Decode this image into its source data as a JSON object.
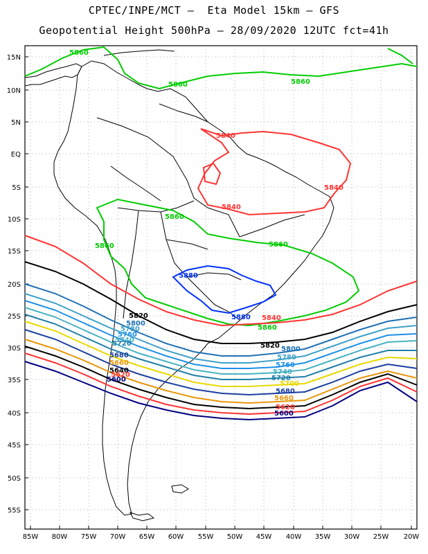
{
  "header": {
    "title_line1": "CPTEC/INPE/MCT –  Eta Model 15km – GFS",
    "title_line2": "Geopotential Height 500hPa – 28/09/2020 12UTC fct=41h"
  },
  "axes": {
    "lon_labels": [
      "85W",
      "80W",
      "75W",
      "70W",
      "65W",
      "60W",
      "55W",
      "50W",
      "45W",
      "40W",
      "35W",
      "30W",
      "25W",
      "20W"
    ],
    "lat_labels": [
      "15N",
      "10N",
      "5N",
      "EQ",
      "5S",
      "10S",
      "15S",
      "20S",
      "25S",
      "30S",
      "35S",
      "40S",
      "45S",
      "50S",
      "55S"
    ]
  },
  "colors": {
    "c5900": "#000080",
    "c5880": "#cc3333",
    "c5860": "#e8960a",
    "c5840": "#ff0000",
    "c5820": "#000000",
    "c5800": "#1f70b4",
    "c5780": "#3ea0c8",
    "c5760": "#1e90e8",
    "c5740": "#48b2c2",
    "c5720": "#1f7fa8",
    "c5700": "#e8d800",
    "c5680": "#1a3ea0",
    "green": "#00cc00",
    "blue": "#0033ff",
    "land": "#000000"
  },
  "contour_labels": [
    {
      "text": "5860",
      "color": "#00cc00"
    },
    {
      "text": "5860",
      "color": "#00cc00"
    },
    {
      "text": "5860",
      "color": "#00cc00"
    },
    {
      "text": "5860",
      "color": "#00cc00"
    },
    {
      "text": "5860",
      "color": "#00cc00"
    },
    {
      "text": "5860",
      "color": "#00cc00"
    },
    {
      "text": "5860",
      "color": "#00cc00"
    },
    {
      "text": "5840",
      "color": "#ff3333"
    },
    {
      "text": "5840",
      "color": "#ff3333"
    },
    {
      "text": "5840",
      "color": "#ff3333"
    },
    {
      "text": "5840",
      "color": "#ff3333"
    },
    {
      "text": "5880",
      "color": "#0033ff"
    },
    {
      "text": "5880",
      "color": "#0033ff"
    },
    {
      "text": "5820",
      "color": "#000000"
    },
    {
      "text": "5820",
      "color": "#000000"
    },
    {
      "text": "5800",
      "color": "#1f70b4"
    },
    {
      "text": "5800",
      "color": "#1f70b4"
    },
    {
      "text": "5780",
      "color": "#3ea0c8"
    },
    {
      "text": "5780",
      "color": "#3ea0c8"
    },
    {
      "text": "5760",
      "color": "#1e90e8"
    },
    {
      "text": "5760",
      "color": "#1e90e8"
    },
    {
      "text": "5740",
      "color": "#48b2c2"
    },
    {
      "text": "5740",
      "color": "#48b2c2"
    },
    {
      "text": "5720",
      "color": "#1f7fa8"
    },
    {
      "text": "5720",
      "color": "#1f7fa8"
    },
    {
      "text": "5700",
      "color": "#e8d800"
    },
    {
      "text": "5680",
      "color": "#1a3ea0"
    },
    {
      "text": "5680",
      "color": "#1a3ea0"
    },
    {
      "text": "5660",
      "color": "#e8960a"
    },
    {
      "text": "5660",
      "color": "#e8960a"
    },
    {
      "text": "5640",
      "color": "#000000"
    },
    {
      "text": "5620",
      "color": "#ff3333"
    },
    {
      "text": "5620",
      "color": "#ff3333"
    },
    {
      "text": "5600",
      "color": "#000080"
    },
    {
      "text": "5600",
      "color": "#000080"
    }
  ]
}
